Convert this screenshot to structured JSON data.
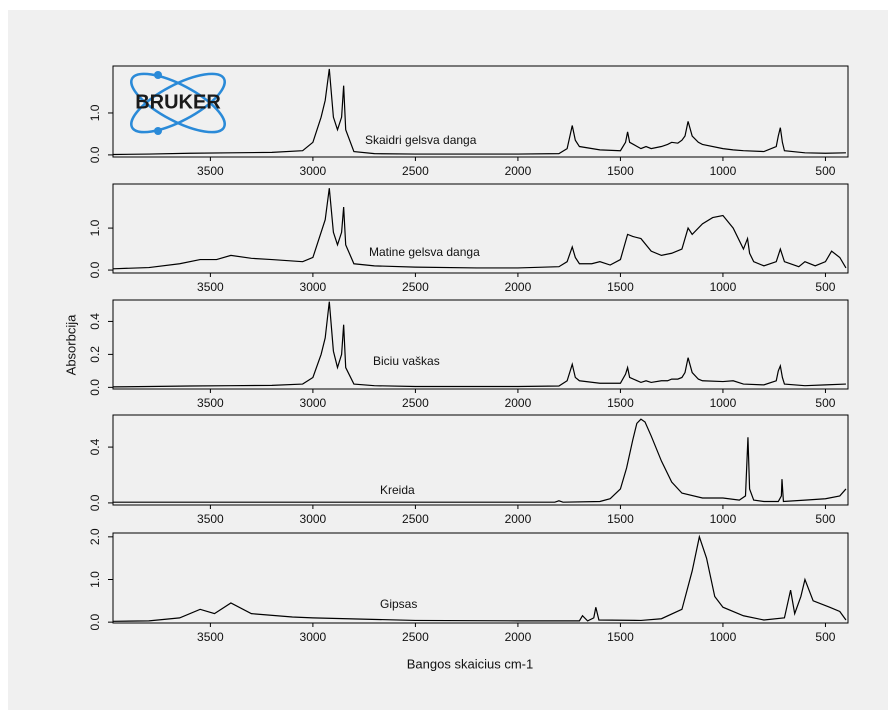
{
  "logo": "BRUKER",
  "ylabel": "Absorbcija",
  "xlabel": "Bangos skaicius cm-1",
  "chart_data": [
    {
      "type": "line",
      "annotation": "Skaidri gelsva danga",
      "color": "#000000",
      "x": [
        3975,
        3800,
        3600,
        3400,
        3200,
        3050,
        3000,
        2960,
        2940,
        2920,
        2900,
        2880,
        2860,
        2850,
        2840,
        2800,
        2700,
        2500,
        2200,
        2000,
        1800,
        1760,
        1735,
        1720,
        1700,
        1600,
        1500,
        1475,
        1465,
        1455,
        1400,
        1375,
        1350,
        1300,
        1270,
        1250,
        1220,
        1200,
        1185,
        1170,
        1150,
        1120,
        1100,
        1000,
        950,
        900,
        800,
        740,
        730,
        720,
        710,
        700,
        600,
        500,
        400
      ],
      "values": [
        0.01,
        0.02,
        0.04,
        0.05,
        0.06,
        0.1,
        0.3,
        0.9,
        1.3,
        2.05,
        0.9,
        0.6,
        0.9,
        1.65,
        0.6,
        0.08,
        0.03,
        0.02,
        0.02,
        0.02,
        0.03,
        0.15,
        0.7,
        0.35,
        0.2,
        0.12,
        0.1,
        0.3,
        0.55,
        0.3,
        0.15,
        0.2,
        0.15,
        0.2,
        0.25,
        0.3,
        0.28,
        0.35,
        0.45,
        0.8,
        0.45,
        0.3,
        0.25,
        0.15,
        0.12,
        0.1,
        0.08,
        0.2,
        0.45,
        0.65,
        0.3,
        0.1,
        0.05,
        0.04,
        0.05
      ],
      "xlim": [
        3975,
        390
      ],
      "xticks": [
        3500,
        3000,
        2500,
        2000,
        1500,
        1000,
        500
      ],
      "ylim": [
        -0.05,
        2.12
      ],
      "yticks": [
        {
          "value": 0,
          "label": "0.0"
        },
        {
          "value": 1,
          "label": "1.0"
        }
      ]
    },
    {
      "type": "line",
      "annotation": "Matine gelsva danga",
      "color": "#000000",
      "x": [
        3975,
        3800,
        3650,
        3550,
        3470,
        3400,
        3300,
        3200,
        3050,
        3000,
        2960,
        2940,
        2920,
        2900,
        2880,
        2860,
        2850,
        2840,
        2800,
        2700,
        2500,
        2200,
        2000,
        1800,
        1760,
        1735,
        1720,
        1700,
        1640,
        1600,
        1550,
        1500,
        1465,
        1440,
        1400,
        1350,
        1300,
        1250,
        1200,
        1170,
        1150,
        1100,
        1050,
        1000,
        950,
        900,
        880,
        870,
        850,
        800,
        740,
        720,
        700,
        670,
        630,
        600,
        550,
        500,
        470,
        430,
        400
      ],
      "values": [
        0.03,
        0.06,
        0.15,
        0.25,
        0.25,
        0.35,
        0.28,
        0.25,
        0.2,
        0.3,
        0.9,
        1.2,
        1.95,
        0.9,
        0.6,
        0.9,
        1.5,
        0.6,
        0.15,
        0.1,
        0.07,
        0.05,
        0.05,
        0.08,
        0.2,
        0.55,
        0.3,
        0.15,
        0.15,
        0.2,
        0.12,
        0.25,
        0.85,
        0.8,
        0.75,
        0.45,
        0.35,
        0.4,
        0.5,
        1.0,
        0.85,
        1.1,
        1.25,
        1.3,
        1.0,
        0.5,
        0.75,
        0.4,
        0.2,
        0.1,
        0.2,
        0.5,
        0.2,
        0.15,
        0.08,
        0.2,
        0.1,
        0.2,
        0.45,
        0.3,
        0.05
      ],
      "xlim": [
        3975,
        390
      ],
      "xticks": [
        3500,
        3000,
        2500,
        2000,
        1500,
        1000,
        500
      ],
      "ylim": [
        -0.07,
        2.05
      ],
      "yticks": [
        {
          "value": 0,
          "label": "0.0"
        },
        {
          "value": 1,
          "label": "1.0"
        }
      ]
    },
    {
      "type": "line",
      "annotation": "Biciu vaškas",
      "color": "#000000",
      "x": [
        3975,
        3800,
        3600,
        3400,
        3200,
        3050,
        3000,
        2960,
        2940,
        2920,
        2900,
        2880,
        2860,
        2850,
        2840,
        2800,
        2700,
        2500,
        2200,
        2000,
        1800,
        1760,
        1735,
        1720,
        1700,
        1600,
        1500,
        1475,
        1465,
        1455,
        1400,
        1375,
        1350,
        1300,
        1270,
        1250,
        1220,
        1200,
        1185,
        1170,
        1150,
        1120,
        1100,
        1000,
        950,
        900,
        800,
        740,
        730,
        720,
        710,
        700,
        600,
        500,
        400
      ],
      "values": [
        0.003,
        0.005,
        0.008,
        0.01,
        0.012,
        0.02,
        0.06,
        0.2,
        0.3,
        0.52,
        0.22,
        0.12,
        0.2,
        0.38,
        0.12,
        0.02,
        0.01,
        0.005,
        0.005,
        0.005,
        0.008,
        0.04,
        0.14,
        0.06,
        0.04,
        0.025,
        0.025,
        0.08,
        0.12,
        0.06,
        0.03,
        0.04,
        0.03,
        0.04,
        0.04,
        0.05,
        0.05,
        0.06,
        0.09,
        0.18,
        0.09,
        0.05,
        0.04,
        0.035,
        0.04,
        0.02,
        0.015,
        0.04,
        0.1,
        0.13,
        0.06,
        0.02,
        0.01,
        0.015,
        0.02
      ],
      "xlim": [
        3975,
        390
      ],
      "xticks": [
        3500,
        3000,
        2500,
        2000,
        1500,
        1000,
        500
      ],
      "ylim": [
        -0.01,
        0.53
      ],
      "yticks": [
        {
          "value": 0,
          "label": "0.0"
        },
        {
          "value": 0.2,
          "label": "0.2"
        },
        {
          "value": 0.4,
          "label": "0.4"
        }
      ]
    },
    {
      "type": "line",
      "annotation": "Kreida",
      "color": "#000000",
      "x": [
        3975,
        3500,
        3000,
        2500,
        2000,
        1820,
        1800,
        1780,
        1600,
        1550,
        1500,
        1470,
        1440,
        1420,
        1400,
        1380,
        1350,
        1300,
        1250,
        1200,
        1100,
        1000,
        920,
        890,
        878,
        870,
        850,
        800,
        730,
        715,
        712,
        705,
        600,
        500,
        430,
        400
      ],
      "values": [
        0.005,
        0.005,
        0.005,
        0.005,
        0.005,
        0.005,
        0.015,
        0.005,
        0.01,
        0.03,
        0.1,
        0.25,
        0.45,
        0.57,
        0.6,
        0.58,
        0.48,
        0.3,
        0.15,
        0.07,
        0.035,
        0.035,
        0.02,
        0.05,
        0.47,
        0.1,
        0.02,
        0.01,
        0.01,
        0.05,
        0.17,
        0.01,
        0.02,
        0.03,
        0.05,
        0.1
      ],
      "xlim": [
        3975,
        390
      ],
      "xticks": [
        3500,
        3000,
        2500,
        2000,
        1500,
        1000,
        500
      ],
      "ylim": [
        -0.015,
        0.63
      ],
      "yticks": [
        {
          "value": 0,
          "label": "0.0"
        },
        {
          "value": 0.4,
          "label": "0.4"
        }
      ]
    },
    {
      "type": "line",
      "annotation": "Gipsas",
      "color": "#000000",
      "x": [
        3975,
        3800,
        3650,
        3550,
        3480,
        3400,
        3300,
        3100,
        3000,
        2500,
        2000,
        1700,
        1685,
        1660,
        1630,
        1620,
        1605,
        1400,
        1300,
        1200,
        1150,
        1115,
        1080,
        1040,
        1000,
        900,
        800,
        700,
        670,
        650,
        620,
        600,
        560,
        480,
        430,
        400
      ],
      "values": [
        0.02,
        0.03,
        0.1,
        0.3,
        0.2,
        0.45,
        0.2,
        0.12,
        0.1,
        0.04,
        0.03,
        0.03,
        0.15,
        0.03,
        0.1,
        0.35,
        0.05,
        0.04,
        0.08,
        0.3,
        1.2,
        2.0,
        1.5,
        0.6,
        0.35,
        0.15,
        0.05,
        0.1,
        0.75,
        0.2,
        0.6,
        1.0,
        0.5,
        0.35,
        0.25,
        0.05
      ],
      "xlim": [
        3975,
        390
      ],
      "xticks": [
        3500,
        3000,
        2500,
        2000,
        1500,
        1000,
        500
      ],
      "ylim": [
        -0.02,
        2.09
      ],
      "yticks": [
        {
          "value": 0,
          "label": "0.0"
        },
        {
          "value": 1,
          "label": "1.0"
        },
        {
          "value": 2,
          "label": "2.0"
        }
      ]
    }
  ]
}
